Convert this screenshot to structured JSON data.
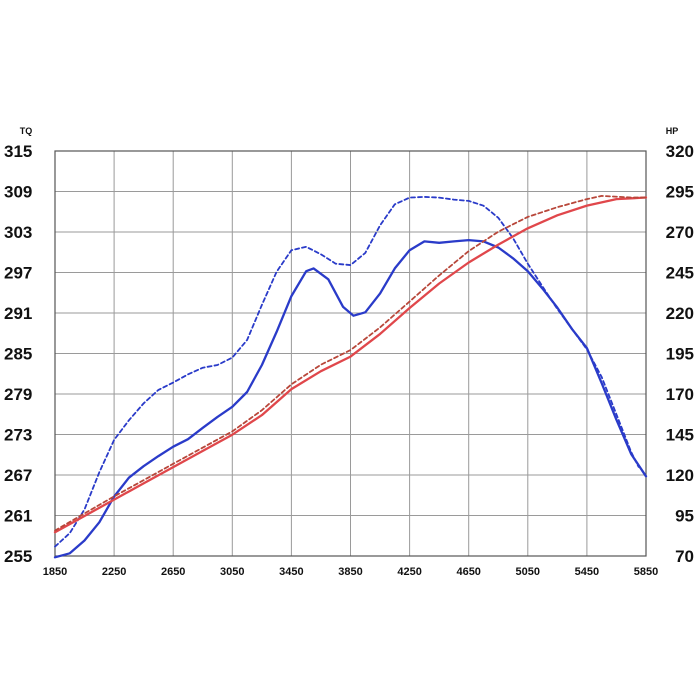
{
  "chart_data": {
    "type": "line",
    "title": "",
    "grid": true,
    "x_axis": {
      "range": [
        1850,
        5850
      ],
      "ticks": [
        1850,
        2250,
        2650,
        3050,
        3450,
        3850,
        4250,
        4650,
        5050,
        5450,
        5850
      ],
      "tick_labels": [
        "1850",
        "2250",
        "2650",
        "3050",
        "3450",
        "3850",
        "4250",
        "4650",
        "5050",
        "5450",
        "5850"
      ]
    },
    "y_left": {
      "label": "TQ",
      "range": [
        255,
        315
      ],
      "ticks": [
        255,
        261,
        267,
        273,
        279,
        285,
        291,
        297,
        303,
        309,
        315
      ],
      "tick_labels": [
        "255",
        "261",
        "267",
        "273",
        "279",
        "285",
        "291",
        "297",
        "303",
        "309",
        "315"
      ]
    },
    "y_right": {
      "label": "HP",
      "range": [
        70,
        320
      ],
      "ticks": [
        70,
        95,
        120,
        145,
        170,
        195,
        220,
        245,
        270,
        295,
        320
      ],
      "tick_labels": [
        "70",
        "95",
        "120",
        "145",
        "170",
        "195",
        "220",
        "245",
        "270",
        "295",
        "320"
      ]
    },
    "series": [
      {
        "axis": "left",
        "color": "#2a3bc9",
        "dash": false,
        "points": [
          [
            1850,
            254.8
          ],
          [
            1950,
            255.4
          ],
          [
            2050,
            257.3
          ],
          [
            2150,
            260.0
          ],
          [
            2250,
            263.8
          ],
          [
            2350,
            266.6
          ],
          [
            2450,
            268.3
          ],
          [
            2550,
            269.8
          ],
          [
            2650,
            271.2
          ],
          [
            2750,
            272.3
          ],
          [
            2850,
            274.0
          ],
          [
            2950,
            275.6
          ],
          [
            3050,
            277.1
          ],
          [
            3150,
            279.3
          ],
          [
            3250,
            283.3
          ],
          [
            3350,
            288.2
          ],
          [
            3450,
            293.5
          ],
          [
            3550,
            297.2
          ],
          [
            3600,
            297.6
          ],
          [
            3700,
            296.0
          ],
          [
            3800,
            291.9
          ],
          [
            3870,
            290.6
          ],
          [
            3950,
            291.1
          ],
          [
            4050,
            293.9
          ],
          [
            4150,
            297.6
          ],
          [
            4250,
            300.3
          ],
          [
            4350,
            301.6
          ],
          [
            4450,
            301.4
          ],
          [
            4550,
            301.6
          ],
          [
            4650,
            301.8
          ],
          [
            4750,
            301.6
          ],
          [
            4850,
            300.7
          ],
          [
            4950,
            299.1
          ],
          [
            5050,
            297.2
          ],
          [
            5150,
            294.6
          ],
          [
            5250,
            291.8
          ],
          [
            5350,
            288.6
          ],
          [
            5450,
            285.8
          ],
          [
            5550,
            280.6
          ],
          [
            5650,
            275.2
          ],
          [
            5750,
            270.1
          ],
          [
            5850,
            266.8
          ]
        ]
      },
      {
        "axis": "left",
        "color": "#2a3bc9",
        "dash": true,
        "points": [
          [
            1850,
            256.4
          ],
          [
            1950,
            258.4
          ],
          [
            2050,
            261.9
          ],
          [
            2150,
            267.4
          ],
          [
            2250,
            272.2
          ],
          [
            2350,
            275.1
          ],
          [
            2450,
            277.6
          ],
          [
            2550,
            279.6
          ],
          [
            2650,
            280.7
          ],
          [
            2750,
            281.9
          ],
          [
            2850,
            282.9
          ],
          [
            2950,
            283.3
          ],
          [
            3050,
            284.4
          ],
          [
            3150,
            287.0
          ],
          [
            3250,
            292.2
          ],
          [
            3350,
            297.1
          ],
          [
            3450,
            300.3
          ],
          [
            3550,
            300.8
          ],
          [
            3650,
            299.7
          ],
          [
            3750,
            298.3
          ],
          [
            3850,
            298.1
          ],
          [
            3950,
            299.9
          ],
          [
            4050,
            304.0
          ],
          [
            4150,
            307.1
          ],
          [
            4250,
            308.1
          ],
          [
            4350,
            308.2
          ],
          [
            4450,
            308.1
          ],
          [
            4550,
            307.8
          ],
          [
            4650,
            307.6
          ],
          [
            4750,
            306.9
          ],
          [
            4850,
            305.1
          ],
          [
            4950,
            302.1
          ],
          [
            5050,
            298.3
          ],
          [
            5150,
            294.9
          ],
          [
            5250,
            291.6
          ],
          [
            5350,
            288.6
          ],
          [
            5450,
            285.6
          ],
          [
            5550,
            281.5
          ],
          [
            5650,
            276.0
          ],
          [
            5750,
            270.4
          ],
          [
            5800,
            268.2
          ]
        ]
      },
      {
        "axis": "right",
        "color": "#e0474b",
        "dash": false,
        "points": [
          [
            1850,
            84.7
          ],
          [
            2050,
            94.7
          ],
          [
            2250,
            104.8
          ],
          [
            2450,
            114.8
          ],
          [
            2650,
            124.9
          ],
          [
            2850,
            134.9
          ],
          [
            3050,
            144.9
          ],
          [
            3250,
            157.0
          ],
          [
            3450,
            173.0
          ],
          [
            3650,
            184.1
          ],
          [
            3850,
            193.1
          ],
          [
            4050,
            207.1
          ],
          [
            4250,
            223.1
          ],
          [
            4450,
            238.2
          ],
          [
            4650,
            251.2
          ],
          [
            4850,
            262.2
          ],
          [
            5050,
            272.3
          ],
          [
            5250,
            280.3
          ],
          [
            5450,
            286.3
          ],
          [
            5650,
            290.3
          ],
          [
            5850,
            291.3
          ]
        ]
      },
      {
        "axis": "right",
        "color": "#b8473a",
        "dash": true,
        "points": [
          [
            1850,
            85.7
          ],
          [
            2050,
            96.3
          ],
          [
            2250,
            106.8
          ],
          [
            2450,
            116.8
          ],
          [
            2650,
            126.9
          ],
          [
            2850,
            136.9
          ],
          [
            3050,
            146.9
          ],
          [
            3250,
            160.0
          ],
          [
            3450,
            176.0
          ],
          [
            3650,
            188.1
          ],
          [
            3850,
            197.1
          ],
          [
            4050,
            211.1
          ],
          [
            4250,
            227.1
          ],
          [
            4450,
            243.2
          ],
          [
            4650,
            258.2
          ],
          [
            4850,
            270.2
          ],
          [
            5050,
            279.3
          ],
          [
            5250,
            285.3
          ],
          [
            5450,
            290.3
          ],
          [
            5550,
            292.3
          ],
          [
            5750,
            291.3
          ],
          [
            5850,
            291.3
          ]
        ]
      }
    ]
  }
}
